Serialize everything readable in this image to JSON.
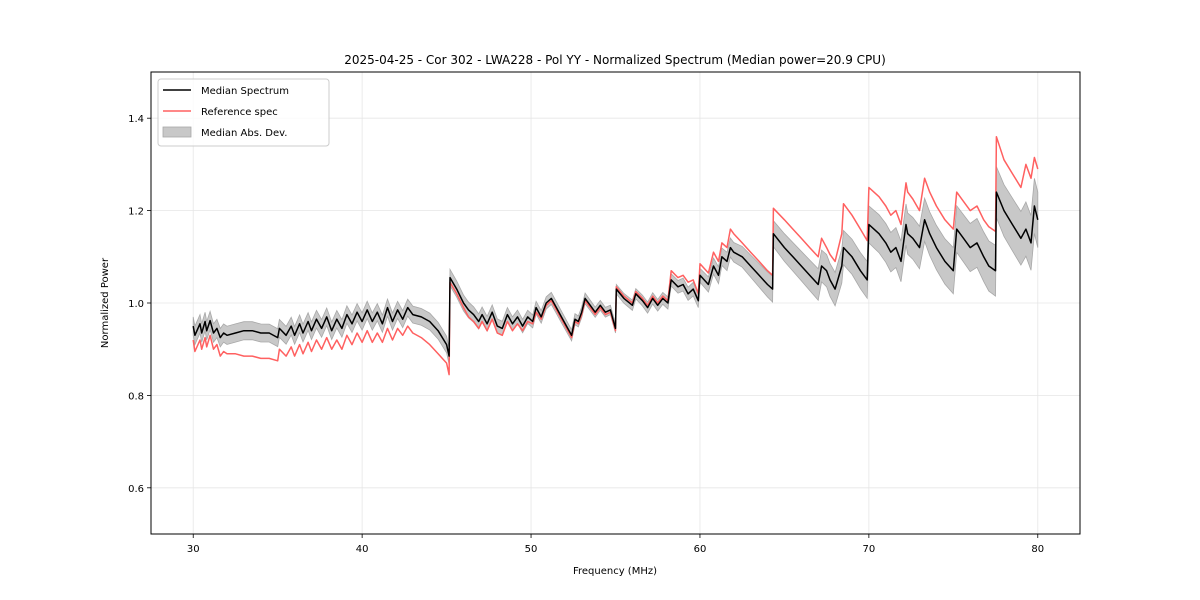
{
  "chart_data": {
    "type": "line",
    "title": "2025-04-25 - Cor 302 - LWA228 - Pol YY - Normalized Spectrum (Median power=20.9 CPU)",
    "xlabel": "Frequency (MHz)",
    "ylabel": "Normalized Power",
    "xlim": [
      27.5,
      82.5
    ],
    "ylim": [
      0.5,
      1.5
    ],
    "xticks": [
      30,
      40,
      50,
      60,
      70,
      80
    ],
    "xtick_labels": [
      "30",
      "40",
      "50",
      "60",
      "70",
      "80"
    ],
    "yticks": [
      0.6,
      0.8,
      1.0,
      1.2,
      1.4
    ],
    "ytick_labels": [
      "0.6",
      "0.8",
      "1.0",
      "1.2",
      "1.4"
    ],
    "grid": true,
    "legend_position": "top-left",
    "legend": [
      {
        "label": "Median Spectrum",
        "kind": "line",
        "color": "#000000"
      },
      {
        "label": "Reference spec",
        "kind": "line",
        "color": "#ff6060"
      },
      {
        "label": "Median Abs. Dev.",
        "kind": "band",
        "color": "#b0b0b0"
      }
    ],
    "series": [
      {
        "name": "Median Spectrum",
        "color": "#000000",
        "x": [
          30.0,
          30.1,
          30.4,
          30.5,
          30.7,
          30.8,
          31.0,
          31.2,
          31.4,
          31.6,
          31.8,
          32.0,
          32.5,
          33.0,
          33.5,
          34.0,
          34.5,
          35.0,
          35.1,
          35.5,
          35.8,
          36.0,
          36.3,
          36.5,
          36.8,
          37.0,
          37.3,
          37.6,
          37.9,
          38.2,
          38.5,
          38.8,
          39.1,
          39.4,
          39.7,
          40.0,
          40.3,
          40.6,
          40.9,
          41.2,
          41.5,
          41.8,
          42.1,
          42.4,
          42.7,
          43.0,
          43.5,
          44.0,
          44.5,
          45.0,
          45.15,
          45.2,
          45.6,
          46.0,
          46.3,
          46.6,
          46.9,
          47.1,
          47.4,
          47.7,
          48.0,
          48.3,
          48.6,
          48.9,
          49.2,
          49.5,
          49.8,
          50.1,
          50.3,
          50.6,
          50.9,
          51.2,
          51.5,
          51.8,
          52.1,
          52.4,
          52.6,
          52.8,
          53.0,
          53.2,
          53.5,
          53.8,
          54.1,
          54.4,
          54.7,
          55.0,
          55.05,
          55.5,
          56.0,
          56.2,
          56.6,
          56.9,
          57.2,
          57.5,
          57.8,
          58.1,
          58.3,
          58.7,
          59.0,
          59.3,
          59.6,
          59.9,
          60.0,
          60.5,
          60.8,
          61.1,
          61.3,
          61.6,
          61.8,
          62.0,
          62.5,
          63.0,
          63.5,
          64.0,
          64.3,
          64.35,
          65.0,
          65.5,
          66.0,
          66.5,
          67.0,
          67.2,
          67.5,
          67.7,
          68.0,
          68.4,
          68.5,
          69.0,
          69.5,
          69.9,
          70.0,
          70.3,
          70.6,
          71.0,
          71.3,
          71.6,
          71.9,
          72.2,
          72.3,
          72.6,
          73.0,
          73.3,
          73.6,
          74.0,
          74.5,
          75.0,
          75.2,
          75.6,
          76.0,
          76.4,
          76.8,
          77.1,
          77.5,
          77.55,
          78.0,
          78.5,
          79.0,
          79.3,
          79.6,
          79.8,
          80.0
        ],
        "y": [
          0.95,
          0.93,
          0.955,
          0.935,
          0.96,
          0.94,
          0.962,
          0.935,
          0.945,
          0.925,
          0.935,
          0.93,
          0.935,
          0.94,
          0.94,
          0.935,
          0.935,
          0.925,
          0.945,
          0.93,
          0.95,
          0.93,
          0.955,
          0.935,
          0.96,
          0.94,
          0.965,
          0.945,
          0.97,
          0.94,
          0.965,
          0.945,
          0.975,
          0.955,
          0.98,
          0.96,
          0.985,
          0.96,
          0.98,
          0.955,
          0.99,
          0.96,
          0.985,
          0.965,
          0.99,
          0.975,
          0.97,
          0.96,
          0.94,
          0.91,
          0.885,
          1.055,
          1.03,
          1.0,
          0.985,
          0.975,
          0.96,
          0.975,
          0.955,
          0.98,
          0.95,
          0.945,
          0.975,
          0.955,
          0.97,
          0.95,
          0.97,
          0.96,
          0.99,
          0.97,
          1.0,
          1.01,
          0.99,
          0.97,
          0.95,
          0.93,
          0.965,
          0.96,
          0.98,
          1.01,
          0.995,
          0.98,
          0.995,
          0.98,
          0.985,
          0.945,
          1.03,
          1.01,
          0.995,
          1.02,
          1.005,
          0.99,
          1.01,
          0.995,
          1.01,
          1.0,
          1.05,
          1.035,
          1.04,
          1.02,
          1.03,
          1.005,
          1.06,
          1.04,
          1.08,
          1.06,
          1.1,
          1.09,
          1.12,
          1.11,
          1.1,
          1.08,
          1.06,
          1.04,
          1.03,
          1.15,
          1.12,
          1.1,
          1.08,
          1.06,
          1.04,
          1.08,
          1.07,
          1.05,
          1.03,
          1.08,
          1.12,
          1.1,
          1.07,
          1.05,
          1.17,
          1.16,
          1.15,
          1.13,
          1.11,
          1.12,
          1.09,
          1.17,
          1.15,
          1.14,
          1.12,
          1.18,
          1.15,
          1.12,
          1.09,
          1.07,
          1.16,
          1.14,
          1.12,
          1.13,
          1.1,
          1.08,
          1.07,
          1.24,
          1.2,
          1.17,
          1.14,
          1.16,
          1.13,
          1.21,
          1.18
        ]
      },
      {
        "name": "Reference spec",
        "color": "#ff6060",
        "x": [
          30.0,
          30.1,
          30.4,
          30.5,
          30.7,
          30.8,
          31.0,
          31.2,
          31.4,
          31.6,
          31.8,
          32.0,
          32.5,
          33.0,
          33.5,
          34.0,
          34.5,
          35.0,
          35.1,
          35.5,
          35.8,
          36.0,
          36.3,
          36.5,
          36.8,
          37.0,
          37.3,
          37.6,
          37.9,
          38.2,
          38.5,
          38.8,
          39.1,
          39.4,
          39.7,
          40.0,
          40.3,
          40.6,
          40.9,
          41.2,
          41.5,
          41.8,
          42.1,
          42.4,
          42.7,
          43.0,
          43.5,
          44.0,
          44.5,
          45.0,
          45.15,
          45.2,
          45.6,
          46.0,
          46.3,
          46.6,
          46.9,
          47.1,
          47.4,
          47.7,
          48.0,
          48.3,
          48.6,
          48.9,
          49.2,
          49.5,
          49.8,
          50.1,
          50.3,
          50.6,
          50.9,
          51.2,
          51.5,
          51.8,
          52.1,
          52.4,
          52.6,
          52.8,
          53.0,
          53.2,
          53.5,
          53.8,
          54.1,
          54.4,
          54.7,
          55.0,
          55.05,
          55.5,
          56.0,
          56.2,
          56.6,
          56.9,
          57.2,
          57.5,
          57.8,
          58.1,
          58.3,
          58.7,
          59.0,
          59.3,
          59.6,
          59.9,
          60.0,
          60.5,
          60.8,
          61.1,
          61.3,
          61.6,
          61.8,
          62.0,
          62.5,
          63.0,
          63.5,
          64.0,
          64.3,
          64.35,
          65.0,
          65.5,
          66.0,
          66.5,
          67.0,
          67.2,
          67.5,
          67.7,
          68.0,
          68.4,
          68.5,
          69.0,
          69.5,
          69.9,
          70.0,
          70.3,
          70.6,
          71.0,
          71.3,
          71.6,
          71.9,
          72.2,
          72.3,
          72.6,
          73.0,
          73.3,
          73.6,
          74.0,
          74.5,
          75.0,
          75.2,
          75.6,
          76.0,
          76.4,
          76.8,
          77.1,
          77.5,
          77.55,
          78.0,
          78.5,
          79.0,
          79.3,
          79.6,
          79.8,
          80.0
        ],
        "y": [
          0.92,
          0.895,
          0.92,
          0.9,
          0.925,
          0.905,
          0.93,
          0.9,
          0.91,
          0.885,
          0.895,
          0.89,
          0.89,
          0.885,
          0.885,
          0.88,
          0.88,
          0.875,
          0.9,
          0.885,
          0.905,
          0.885,
          0.91,
          0.89,
          0.915,
          0.895,
          0.92,
          0.9,
          0.925,
          0.9,
          0.92,
          0.9,
          0.93,
          0.91,
          0.935,
          0.915,
          0.94,
          0.915,
          0.935,
          0.915,
          0.945,
          0.92,
          0.945,
          0.93,
          0.95,
          0.935,
          0.925,
          0.91,
          0.89,
          0.87,
          0.845,
          1.045,
          1.02,
          0.99,
          0.97,
          0.96,
          0.945,
          0.96,
          0.94,
          0.965,
          0.935,
          0.93,
          0.96,
          0.94,
          0.955,
          0.94,
          0.96,
          0.955,
          0.98,
          0.965,
          0.995,
          1.005,
          0.985,
          0.965,
          0.945,
          0.925,
          0.96,
          0.955,
          0.975,
          1.005,
          0.99,
          0.975,
          0.99,
          0.975,
          0.98,
          0.94,
          1.035,
          1.015,
          1.0,
          1.025,
          1.01,
          0.995,
          1.015,
          1.0,
          1.015,
          1.005,
          1.07,
          1.055,
          1.06,
          1.045,
          1.05,
          1.02,
          1.085,
          1.065,
          1.11,
          1.09,
          1.13,
          1.12,
          1.16,
          1.15,
          1.13,
          1.11,
          1.09,
          1.07,
          1.06,
          1.205,
          1.18,
          1.16,
          1.14,
          1.12,
          1.1,
          1.14,
          1.12,
          1.105,
          1.09,
          1.15,
          1.215,
          1.19,
          1.16,
          1.135,
          1.25,
          1.24,
          1.23,
          1.21,
          1.19,
          1.2,
          1.17,
          1.26,
          1.24,
          1.225,
          1.2,
          1.27,
          1.24,
          1.21,
          1.18,
          1.16,
          1.24,
          1.22,
          1.2,
          1.21,
          1.18,
          1.165,
          1.155,
          1.36,
          1.31,
          1.28,
          1.25,
          1.3,
          1.27,
          1.315,
          1.29
        ]
      }
    ],
    "band": {
      "name": "Median Abs. Dev.",
      "color": "#b0b0b0",
      "description": "Shaded region of ±median absolute deviation around the median spectrum; narrow (~±0.015) below 60 MHz, widening to ~±0.06 near 80 MHz",
      "halfwidth_x": [
        30,
        45,
        55,
        60,
        65,
        70,
        75,
        80
      ],
      "halfwidth_y": [
        0.02,
        0.018,
        0.01,
        0.015,
        0.03,
        0.04,
        0.05,
        0.06
      ]
    }
  }
}
